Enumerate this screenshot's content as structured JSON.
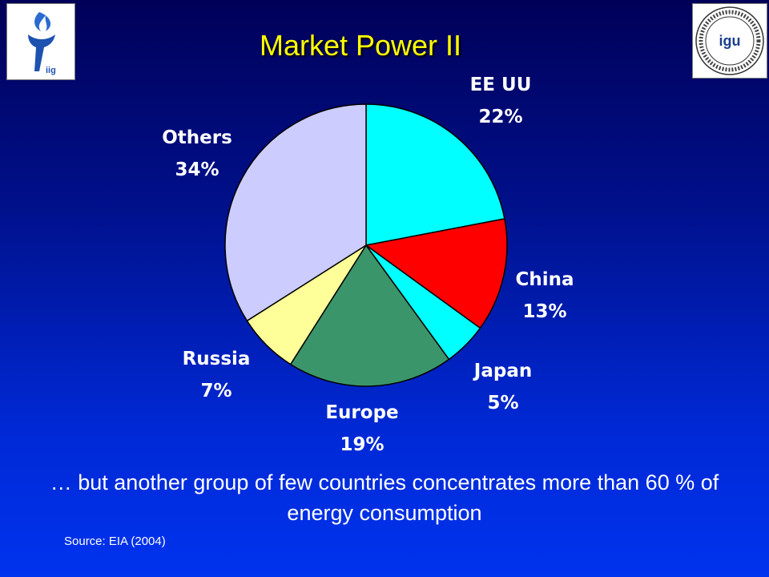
{
  "header": {
    "title": "Market Power II",
    "left_logo": {
      "icon": "flame-logo-icon",
      "text": "iig"
    },
    "right_logo": {
      "icon": "igu-seal-icon",
      "text": "igu",
      "ring_text": "INTERNATIONAL GAS UNION · UNION INTERNATIONALE DE L'INDUSTRIE DU GAZ"
    }
  },
  "chart_data": {
    "type": "pie",
    "title": "Market Power II",
    "slices": [
      {
        "label": "EE UU",
        "value": 22,
        "display": "22%",
        "color": "#00ffff"
      },
      {
        "label": "China",
        "value": 13,
        "display": "13%",
        "color": "#ff0000"
      },
      {
        "label": "Japan",
        "value": 5,
        "display": "5%",
        "color": "#00ffff"
      },
      {
        "label": "Europe",
        "value": 19,
        "display": "19%",
        "color": "#3a966a"
      },
      {
        "label": "Russia",
        "value": 7,
        "display": "7%",
        "color": "#ffff99"
      },
      {
        "label": "Others",
        "value": 34,
        "display": "34%",
        "color": "#ccccff"
      }
    ],
    "start_angle_deg": 0,
    "direction": "clockwise"
  },
  "caption": "… but another group of few countries concentrates more than 60 % of energy consumption",
  "source": "Source: EIA (2004)"
}
